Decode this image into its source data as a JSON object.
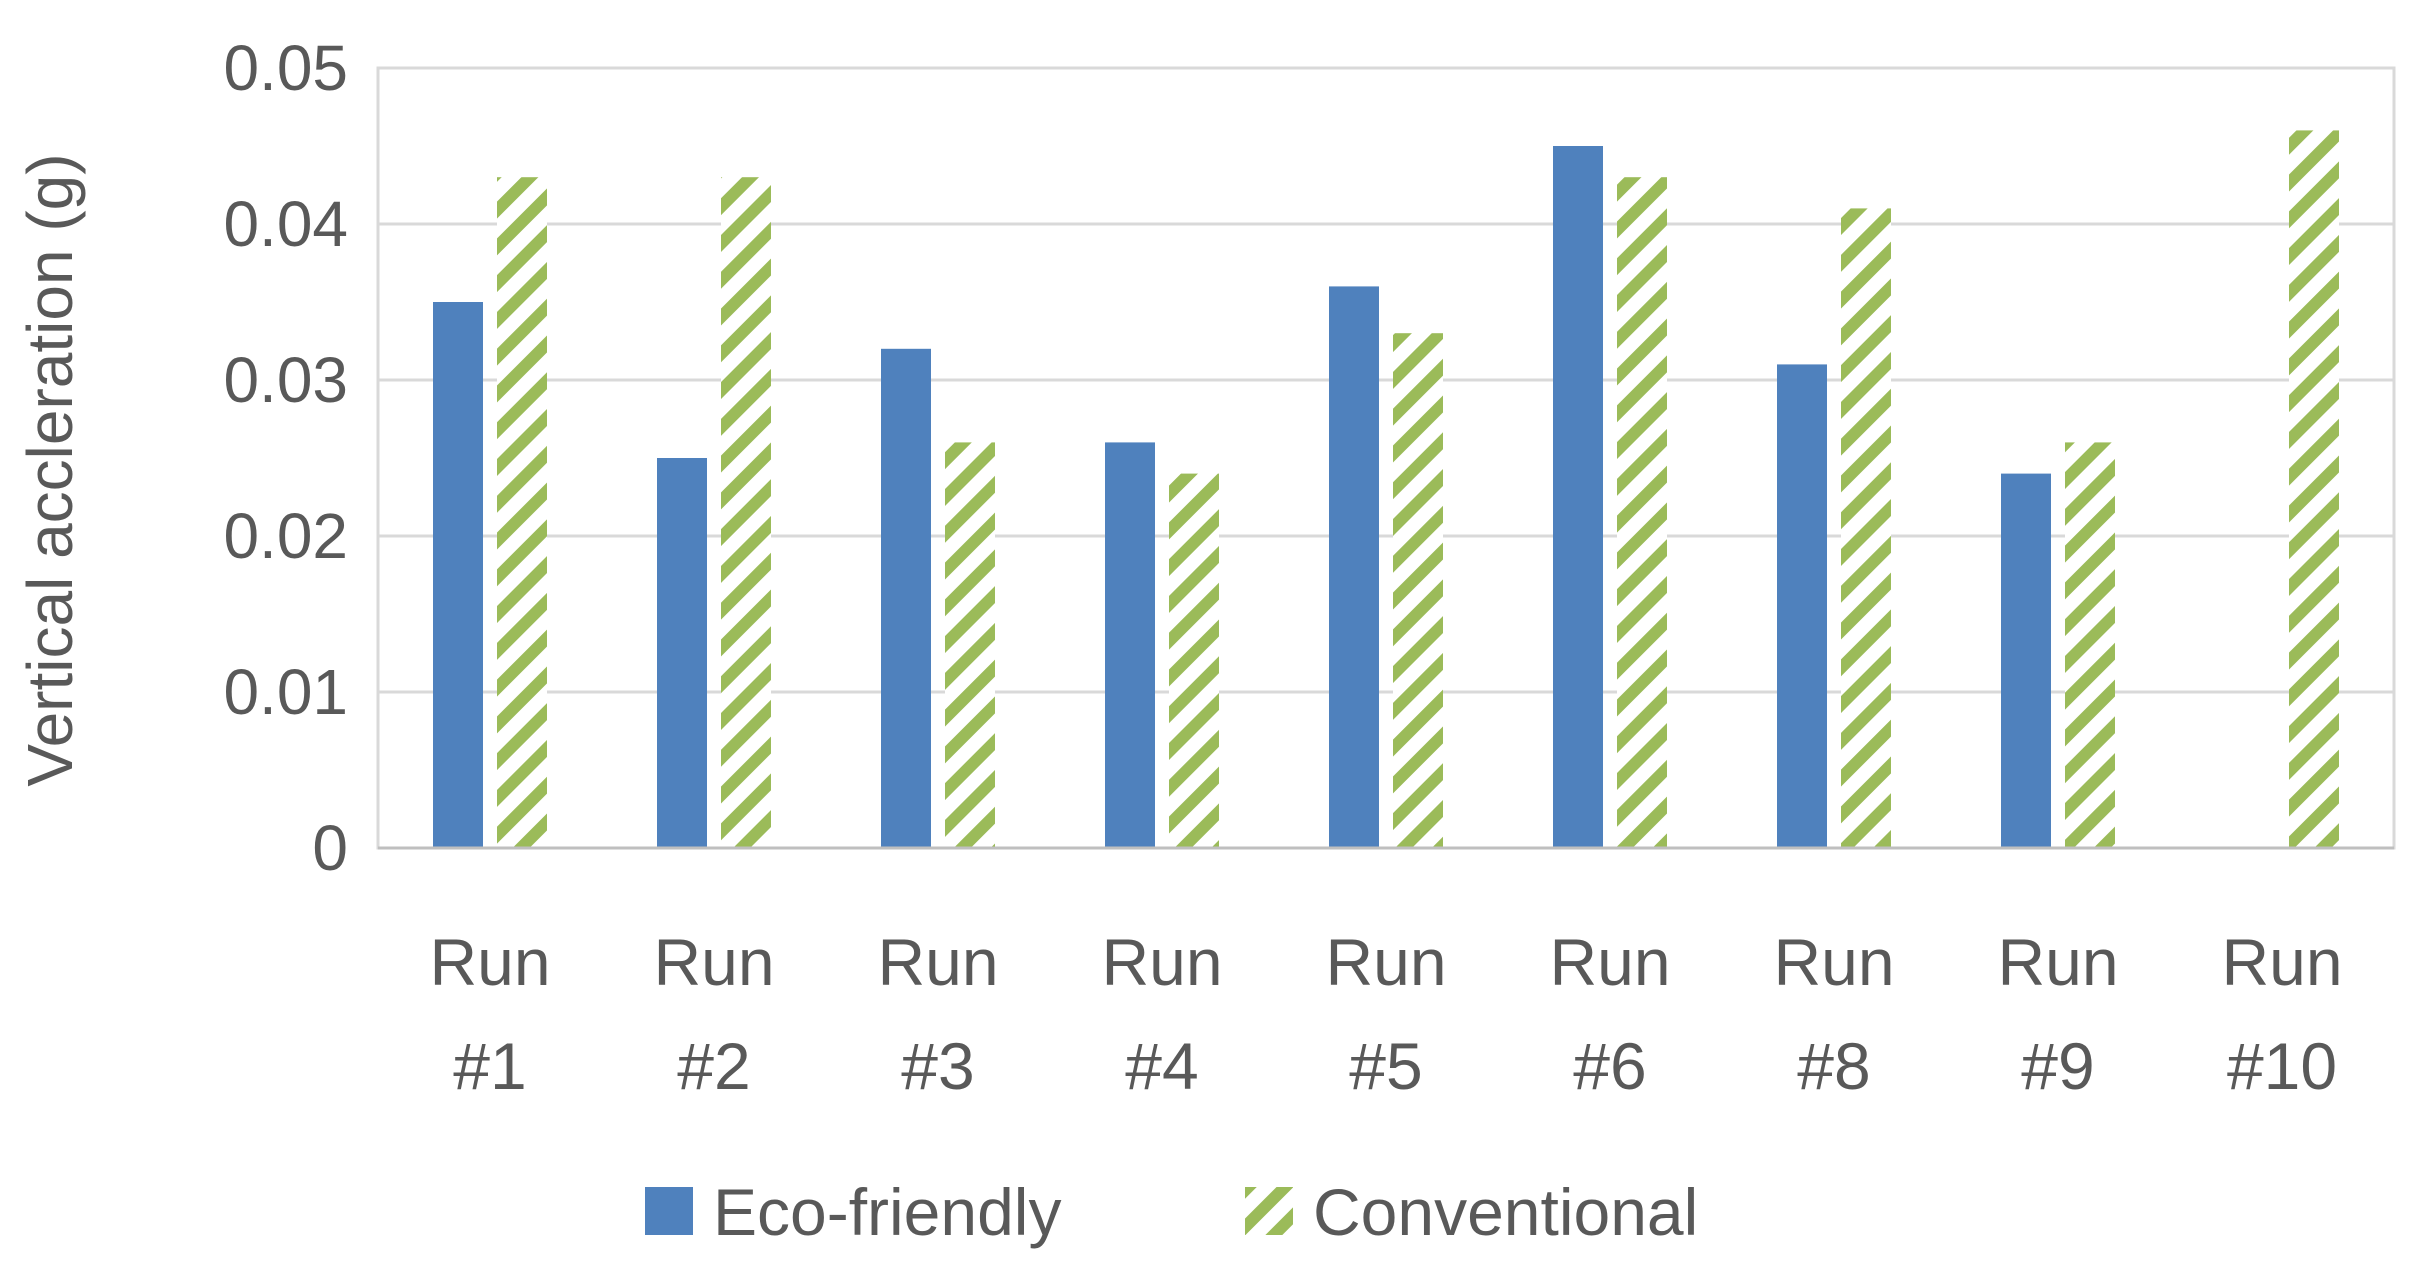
{
  "chart_data": {
    "type": "bar",
    "categories": [
      [
        "Run",
        "#1"
      ],
      [
        "Run",
        "#2"
      ],
      [
        "Run",
        "#3"
      ],
      [
        "Run",
        "#4"
      ],
      [
        "Run",
        "#5"
      ],
      [
        "Run",
        "#6"
      ],
      [
        "Run",
        "#8"
      ],
      [
        "Run",
        "#9"
      ],
      [
        "Run",
        "#10"
      ]
    ],
    "series": [
      {
        "name": "Eco-friendly",
        "color": "#4F81BD",
        "pattern": "solid",
        "values": [
          0.035,
          0.025,
          0.032,
          0.026,
          0.036,
          0.045,
          0.031,
          0.024,
          null
        ]
      },
      {
        "name": "Conventional",
        "color": "#9BBB59",
        "pattern": "diagonal-stripes",
        "values": [
          0.043,
          0.043,
          0.026,
          0.024,
          0.033,
          0.043,
          0.041,
          0.026,
          0.046
        ]
      }
    ],
    "title": "",
    "xlabel": "",
    "ylabel": "Vertical accleration (g)",
    "ylim": [
      0,
      0.05
    ],
    "yticks": [
      "0",
      "0.01",
      "0.02",
      "0.03",
      "0.04",
      "0.05"
    ],
    "grid": true,
    "legend": "bottom"
  }
}
